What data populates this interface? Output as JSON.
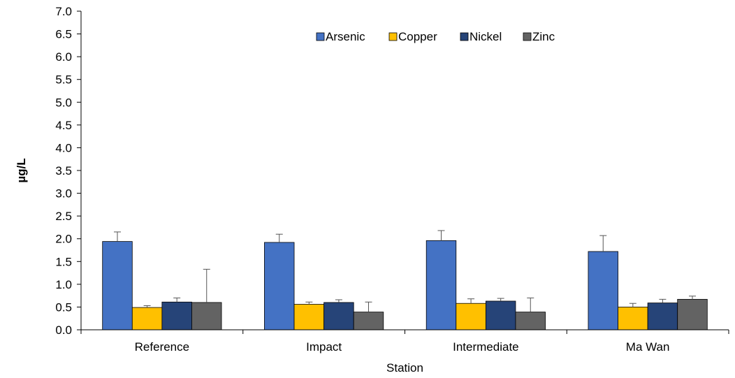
{
  "chart_data": {
    "type": "bar",
    "xlabel": "Station",
    "ylabel": "µg/L",
    "ylim": [
      0,
      7.0
    ],
    "ytick_step": 0.5,
    "categories": [
      "Reference",
      "Impact",
      "Intermediate",
      "Ma Wan"
    ],
    "legend_position": "top-center",
    "grid": false,
    "series": [
      {
        "name": "Arsenic",
        "color": "#4472C4",
        "values": [
          1.94,
          1.92,
          1.96,
          1.72
        ],
        "errors": [
          0.21,
          0.18,
          0.22,
          0.35
        ]
      },
      {
        "name": "Copper",
        "color": "#FFC000",
        "values": [
          0.49,
          0.56,
          0.58,
          0.5
        ],
        "errors": [
          0.04,
          0.05,
          0.1,
          0.08
        ]
      },
      {
        "name": "Nickel",
        "color": "#264478",
        "values": [
          0.61,
          0.6,
          0.63,
          0.59
        ],
        "errors": [
          0.09,
          0.06,
          0.06,
          0.08
        ]
      },
      {
        "name": "Zinc",
        "color": "#636363",
        "values": [
          0.6,
          0.39,
          0.39,
          0.67
        ],
        "errors": [
          0.73,
          0.22,
          0.31,
          0.07
        ]
      }
    ]
  }
}
